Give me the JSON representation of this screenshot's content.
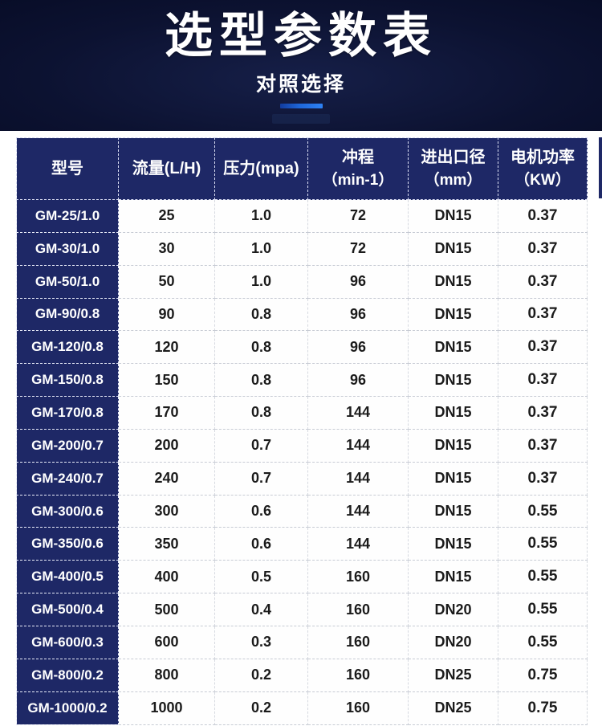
{
  "page": {
    "title": "选型参数表",
    "subtitle": "对照选择"
  },
  "theme": {
    "hero_bg": "#0c1231",
    "table_header_bg": "#1e2866",
    "accent_blue": "#2e82f5",
    "data_text": "#1b1b1b"
  },
  "table": {
    "columns": [
      {
        "label": "型号"
      },
      {
        "label": "流量(L/H)"
      },
      {
        "label": "压力(mpa)"
      },
      {
        "label": "冲程",
        "sub": "（min-1）"
      },
      {
        "label": "进出口径",
        "sub": "（mm）"
      },
      {
        "label": "电机功率",
        "sub": "（KW）"
      }
    ],
    "rows": [
      [
        "GM-25/1.0",
        "25",
        "1.0",
        "72",
        "DN15",
        "0.37"
      ],
      [
        "GM-30/1.0",
        "30",
        "1.0",
        "72",
        "DN15",
        "0.37"
      ],
      [
        "GM-50/1.0",
        "50",
        "1.0",
        "96",
        "DN15",
        "0.37"
      ],
      [
        "GM-90/0.8",
        "90",
        "0.8",
        "96",
        "DN15",
        "0.37"
      ],
      [
        "GM-120/0.8",
        "120",
        "0.8",
        "96",
        "DN15",
        "0.37"
      ],
      [
        "GM-150/0.8",
        "150",
        "0.8",
        "96",
        "DN15",
        "0.37"
      ],
      [
        "GM-170/0.8",
        "170",
        "0.8",
        "144",
        "DN15",
        "0.37"
      ],
      [
        "GM-200/0.7",
        "200",
        "0.7",
        "144",
        "DN15",
        "0.37"
      ],
      [
        "GM-240/0.7",
        "240",
        "0.7",
        "144",
        "DN15",
        "0.37"
      ],
      [
        "GM-300/0.6",
        "300",
        "0.6",
        "144",
        "DN15",
        "0.55"
      ],
      [
        "GM-350/0.6",
        "350",
        "0.6",
        "144",
        "DN15",
        "0.55"
      ],
      [
        "GM-400/0.5",
        "400",
        "0.5",
        "160",
        "DN15",
        "0.55"
      ],
      [
        "GM-500/0.4",
        "500",
        "0.4",
        "160",
        "DN20",
        "0.55"
      ],
      [
        "GM-600/0.3",
        "600",
        "0.3",
        "160",
        "DN20",
        "0.55"
      ],
      [
        "GM-800/0.2",
        "800",
        "0.2",
        "160",
        "DN25",
        "0.75"
      ],
      [
        "GM-1000/0.2",
        "1000",
        "0.2",
        "160",
        "DN25",
        "0.75"
      ]
    ]
  }
}
